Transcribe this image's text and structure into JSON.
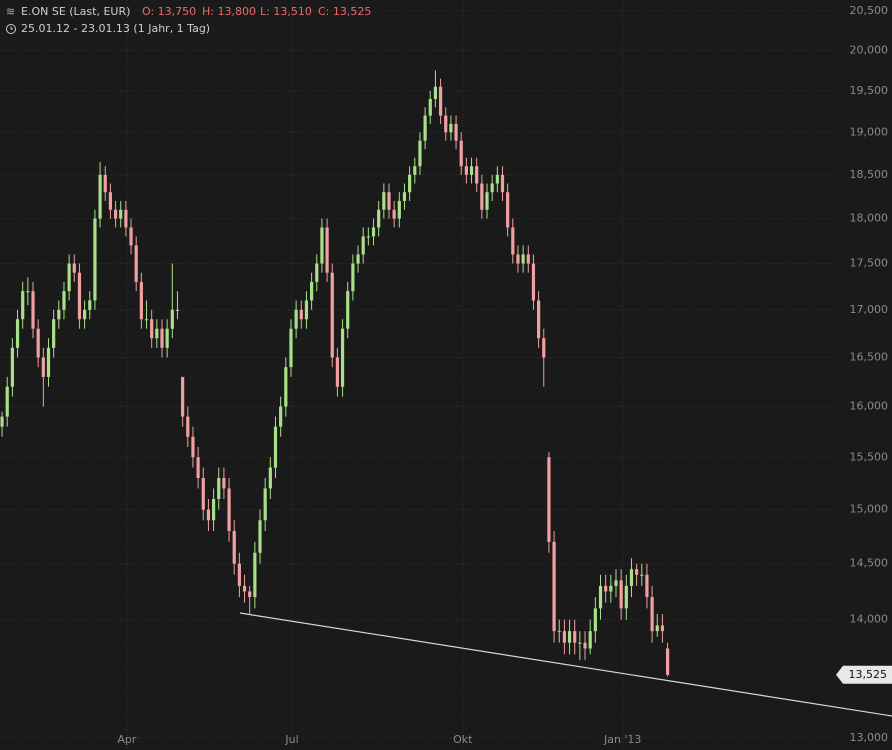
{
  "chart_data": {
    "type": "candlestick",
    "title": "E.ON SE (Last, EUR)",
    "quote": [
      "O: 13,750",
      "H: 13,800",
      "L: 13,510",
      "C: 13,525"
    ],
    "subtitle": "25.01.12 - 23.01.13 (1 Jahr, 1 Tag)",
    "log_scale": true,
    "grid": true,
    "up_color": "#a8e08a",
    "down_color": "#f0a0a0",
    "last_label": "13,525",
    "ylim": [
      13000,
      20500
    ],
    "yticks": [
      {
        "value": 13000,
        "label": "13,000"
      },
      {
        "value": 14000,
        "label": "14,000"
      },
      {
        "value": 14500,
        "label": "14,500"
      },
      {
        "value": 15000,
        "label": "15,000"
      },
      {
        "value": 15500,
        "label": "15,500"
      },
      {
        "value": 16000,
        "label": "16,000"
      },
      {
        "value": 16500,
        "label": "16,500"
      },
      {
        "value": 17000,
        "label": "17,000"
      },
      {
        "value": 17500,
        "label": "17,500"
      },
      {
        "value": 18000,
        "label": "18,000"
      },
      {
        "value": 18500,
        "label": "18,500"
      },
      {
        "value": 19000,
        "label": "19,000"
      },
      {
        "value": 19500,
        "label": "19,500"
      },
      {
        "value": 20000,
        "label": "20,000"
      },
      {
        "value": 20500,
        "label": "20,500"
      }
    ],
    "xlim": [
      -0.4,
      172.5
    ],
    "xticks": [
      {
        "value": 24.2,
        "label": "Apr"
      },
      {
        "value": 56.2,
        "label": "Jul"
      },
      {
        "value": 89.3,
        "label": "Okt"
      },
      {
        "value": 120.3,
        "label": "Jan '13"
      }
    ],
    "candles": [
      [
        15800,
        15950,
        15700,
        15900
      ],
      [
        15900,
        16300,
        15800,
        16200
      ],
      [
        16200,
        16700,
        16100,
        16600
      ],
      [
        16600,
        17000,
        16500,
        16900
      ],
      [
        16900,
        17300,
        16800,
        17200
      ],
      [
        17200,
        17350,
        17050,
        17200
      ],
      [
        17200,
        17300,
        16700,
        16800
      ],
      [
        16800,
        16900,
        16400,
        16500
      ],
      [
        16500,
        16600,
        16000,
        16300
      ],
      [
        16300,
        16700,
        16200,
        16600
      ],
      [
        16600,
        17000,
        16500,
        16900
      ],
      [
        16900,
        17100,
        16800,
        17000
      ],
      [
        17000,
        17300,
        16900,
        17200
      ],
      [
        17200,
        17600,
        17100,
        17500
      ],
      [
        17500,
        17600,
        17300,
        17400
      ],
      [
        17400,
        17500,
        16800,
        16900
      ],
      [
        16900,
        17100,
        16800,
        17000
      ],
      [
        17000,
        17200,
        16900,
        17100
      ],
      [
        17100,
        18100,
        17000,
        18000
      ],
      [
        18000,
        18650,
        17900,
        18500
      ],
      [
        18500,
        18600,
        18200,
        18300
      ],
      [
        18300,
        18400,
        18000,
        18100
      ],
      [
        18100,
        18200,
        17900,
        18000
      ],
      [
        18000,
        18200,
        17900,
        18100
      ],
      [
        18100,
        18200,
        17800,
        17900
      ],
      [
        17900,
        18000,
        17600,
        17700
      ],
      [
        17700,
        17800,
        17200,
        17300
      ],
      [
        17300,
        17400,
        16800,
        16900
      ],
      [
        16900,
        17100,
        16800,
        16900
      ],
      [
        16900,
        17000,
        16600,
        16700
      ],
      [
        16700,
        16900,
        16600,
        16800
      ],
      [
        16800,
        16900,
        16500,
        16600
      ],
      [
        16600,
        16900,
        16500,
        16800
      ],
      [
        16800,
        17500,
        16700,
        17000
      ],
      [
        17000,
        17200,
        16900,
        17000
      ],
      [
        16300,
        16300,
        15800,
        15900
      ],
      [
        15900,
        16000,
        15600,
        15700
      ],
      [
        15700,
        15800,
        15400,
        15500
      ],
      [
        15500,
        15600,
        15200,
        15300
      ],
      [
        15300,
        15400,
        14900,
        15000
      ],
      [
        15000,
        15100,
        14800,
        14900
      ],
      [
        14900,
        15200,
        14800,
        15100
      ],
      [
        15100,
        15400,
        15000,
        15300
      ],
      [
        15300,
        15400,
        15100,
        15200
      ],
      [
        15200,
        15300,
        14700,
        14800
      ],
      [
        14800,
        14900,
        14400,
        14500
      ],
      [
        14500,
        14600,
        14200,
        14300
      ],
      [
        14300,
        14400,
        14150,
        14250
      ],
      [
        14250,
        14300,
        14050,
        14200
      ],
      [
        14200,
        14700,
        14100,
        14600
      ],
      [
        14600,
        15000,
        14500,
        14900
      ],
      [
        14900,
        15300,
        14800,
        15200
      ],
      [
        15200,
        15500,
        15100,
        15400
      ],
      [
        15400,
        15900,
        15300,
        15800
      ],
      [
        15800,
        16100,
        15700,
        16000
      ],
      [
        16000,
        16500,
        15900,
        16400
      ],
      [
        16400,
        16900,
        16300,
        16800
      ],
      [
        16800,
        17100,
        16700,
        17000
      ],
      [
        17000,
        17100,
        16800,
        16900
      ],
      [
        16900,
        17200,
        16800,
        17100
      ],
      [
        17100,
        17400,
        17000,
        17300
      ],
      [
        17300,
        17600,
        17200,
        17500
      ],
      [
        17500,
        18000,
        17400,
        17900
      ],
      [
        17900,
        18000,
        17300,
        17400
      ],
      [
        17400,
        17500,
        16400,
        16500
      ],
      [
        16500,
        16600,
        16100,
        16200
      ],
      [
        16200,
        16900,
        16100,
        16800
      ],
      [
        16800,
        17300,
        16700,
        17200
      ],
      [
        17200,
        17600,
        17100,
        17500
      ],
      [
        17500,
        17700,
        17400,
        17600
      ],
      [
        17600,
        17900,
        17500,
        17800
      ],
      [
        17800,
        17900,
        17700,
        17800
      ],
      [
        17800,
        18000,
        17700,
        17900
      ],
      [
        17900,
        18200,
        17800,
        18100
      ],
      [
        18100,
        18400,
        18000,
        18300
      ],
      [
        18300,
        18400,
        18000,
        18100
      ],
      [
        18100,
        18200,
        17900,
        18000
      ],
      [
        18000,
        18300,
        17900,
        18200
      ],
      [
        18200,
        18400,
        18100,
        18300
      ],
      [
        18300,
        18600,
        18200,
        18500
      ],
      [
        18500,
        18700,
        18400,
        18600
      ],
      [
        18600,
        19000,
        18500,
        18900
      ],
      [
        18900,
        19300,
        18800,
        19200
      ],
      [
        19200,
        19500,
        19100,
        19400
      ],
      [
        19400,
        19750,
        19300,
        19550
      ],
      [
        19550,
        19650,
        19100,
        19200
      ],
      [
        19200,
        19300,
        18900,
        19000
      ],
      [
        19000,
        19200,
        18900,
        19100
      ],
      [
        19100,
        19200,
        18800,
        18900
      ],
      [
        18900,
        19000,
        18500,
        18600
      ],
      [
        18600,
        18700,
        18400,
        18500
      ],
      [
        18500,
        18700,
        18400,
        18600
      ],
      [
        18600,
        18700,
        18300,
        18400
      ],
      [
        18400,
        18500,
        18000,
        18100
      ],
      [
        18100,
        18400,
        18000,
        18300
      ],
      [
        18300,
        18500,
        18200,
        18400
      ],
      [
        18400,
        18600,
        18300,
        18500
      ],
      [
        18500,
        18600,
        18200,
        18300
      ],
      [
        18300,
        18400,
        17800,
        17900
      ],
      [
        17900,
        18000,
        17500,
        17600
      ],
      [
        17600,
        17700,
        17400,
        17500
      ],
      [
        17500,
        17700,
        17400,
        17600
      ],
      [
        17600,
        17700,
        17400,
        17500
      ],
      [
        17500,
        17600,
        17000,
        17100
      ],
      [
        17100,
        17200,
        16600,
        16700
      ],
      [
        16700,
        16800,
        16200,
        16500
      ],
      [
        15500,
        15550,
        14600,
        14700
      ],
      [
        14700,
        14800,
        13800,
        13900
      ],
      [
        13900,
        14000,
        13800,
        13900
      ],
      [
        13900,
        14000,
        13700,
        13800
      ],
      [
        13800,
        14000,
        13700,
        13900
      ],
      [
        13900,
        14000,
        13700,
        13800
      ],
      [
        13800,
        13900,
        13650,
        13800
      ],
      [
        13800,
        13900,
        13650,
        13750
      ],
      [
        13750,
        14000,
        13700,
        13900
      ],
      [
        13900,
        14200,
        13800,
        14100
      ],
      [
        14100,
        14400,
        14000,
        14300
      ],
      [
        14300,
        14400,
        14150,
        14250
      ],
      [
        14250,
        14400,
        14150,
        14300
      ],
      [
        14300,
        14450,
        14200,
        14350
      ],
      [
        14350,
        14450,
        14000,
        14100
      ],
      [
        14100,
        14400,
        14000,
        14300
      ],
      [
        14300,
        14550,
        14200,
        14450
      ],
      [
        14450,
        14500,
        14300,
        14400
      ],
      [
        14400,
        14500,
        14300,
        14400
      ],
      [
        14400,
        14500,
        14100,
        14200
      ],
      [
        14200,
        14300,
        13800,
        13900
      ],
      [
        13900,
        14050,
        13850,
        13950
      ],
      [
        13950,
        14050,
        13800,
        13900
      ],
      [
        13750,
        13800,
        13510,
        13525
      ]
    ]
  }
}
